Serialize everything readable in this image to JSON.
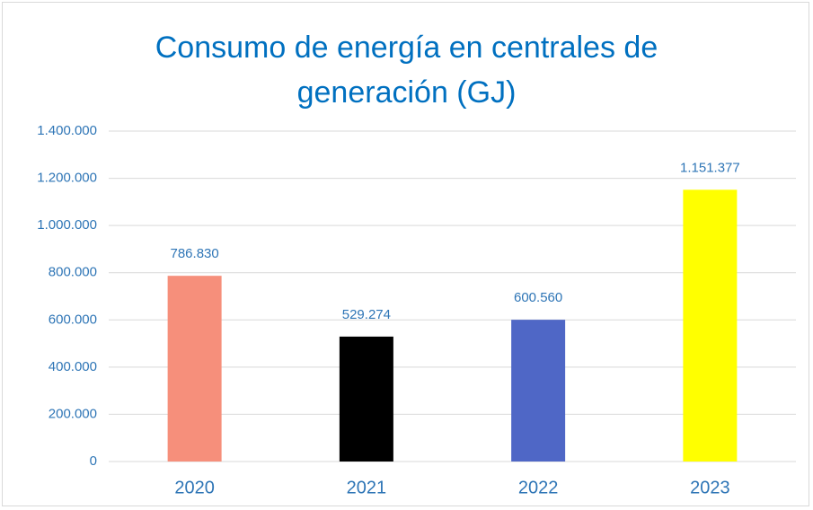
{
  "chart_data": {
    "type": "bar",
    "title": "Consumo de energía en centrales de generación (GJ)",
    "categories": [
      "2020",
      "2021",
      "2022",
      "2023"
    ],
    "values": [
      786830,
      529274,
      600560,
      1151377
    ],
    "value_labels": [
      "786.830",
      "529.274",
      "600.560",
      "1.151.377"
    ],
    "colors": [
      "#f68f7b",
      "#000000",
      "#4f67c6",
      "#ffff00"
    ],
    "ylim": [
      0,
      1400000
    ],
    "yticks": [
      0,
      {
        "value": 200000,
        "label": "200.000"
      },
      {
        "value": 400000,
        "label": "400.000"
      },
      {
        "value": 600000,
        "label": "600.000"
      },
      {
        "value": 800000,
        "label": "800.000"
      },
      {
        "value": 1000000,
        "label": "1.000.000"
      },
      {
        "value": 1200000,
        "label": "1.200.000"
      },
      {
        "value": 1400000,
        "label": "1.400.000"
      }
    ],
    "grid": true
  }
}
